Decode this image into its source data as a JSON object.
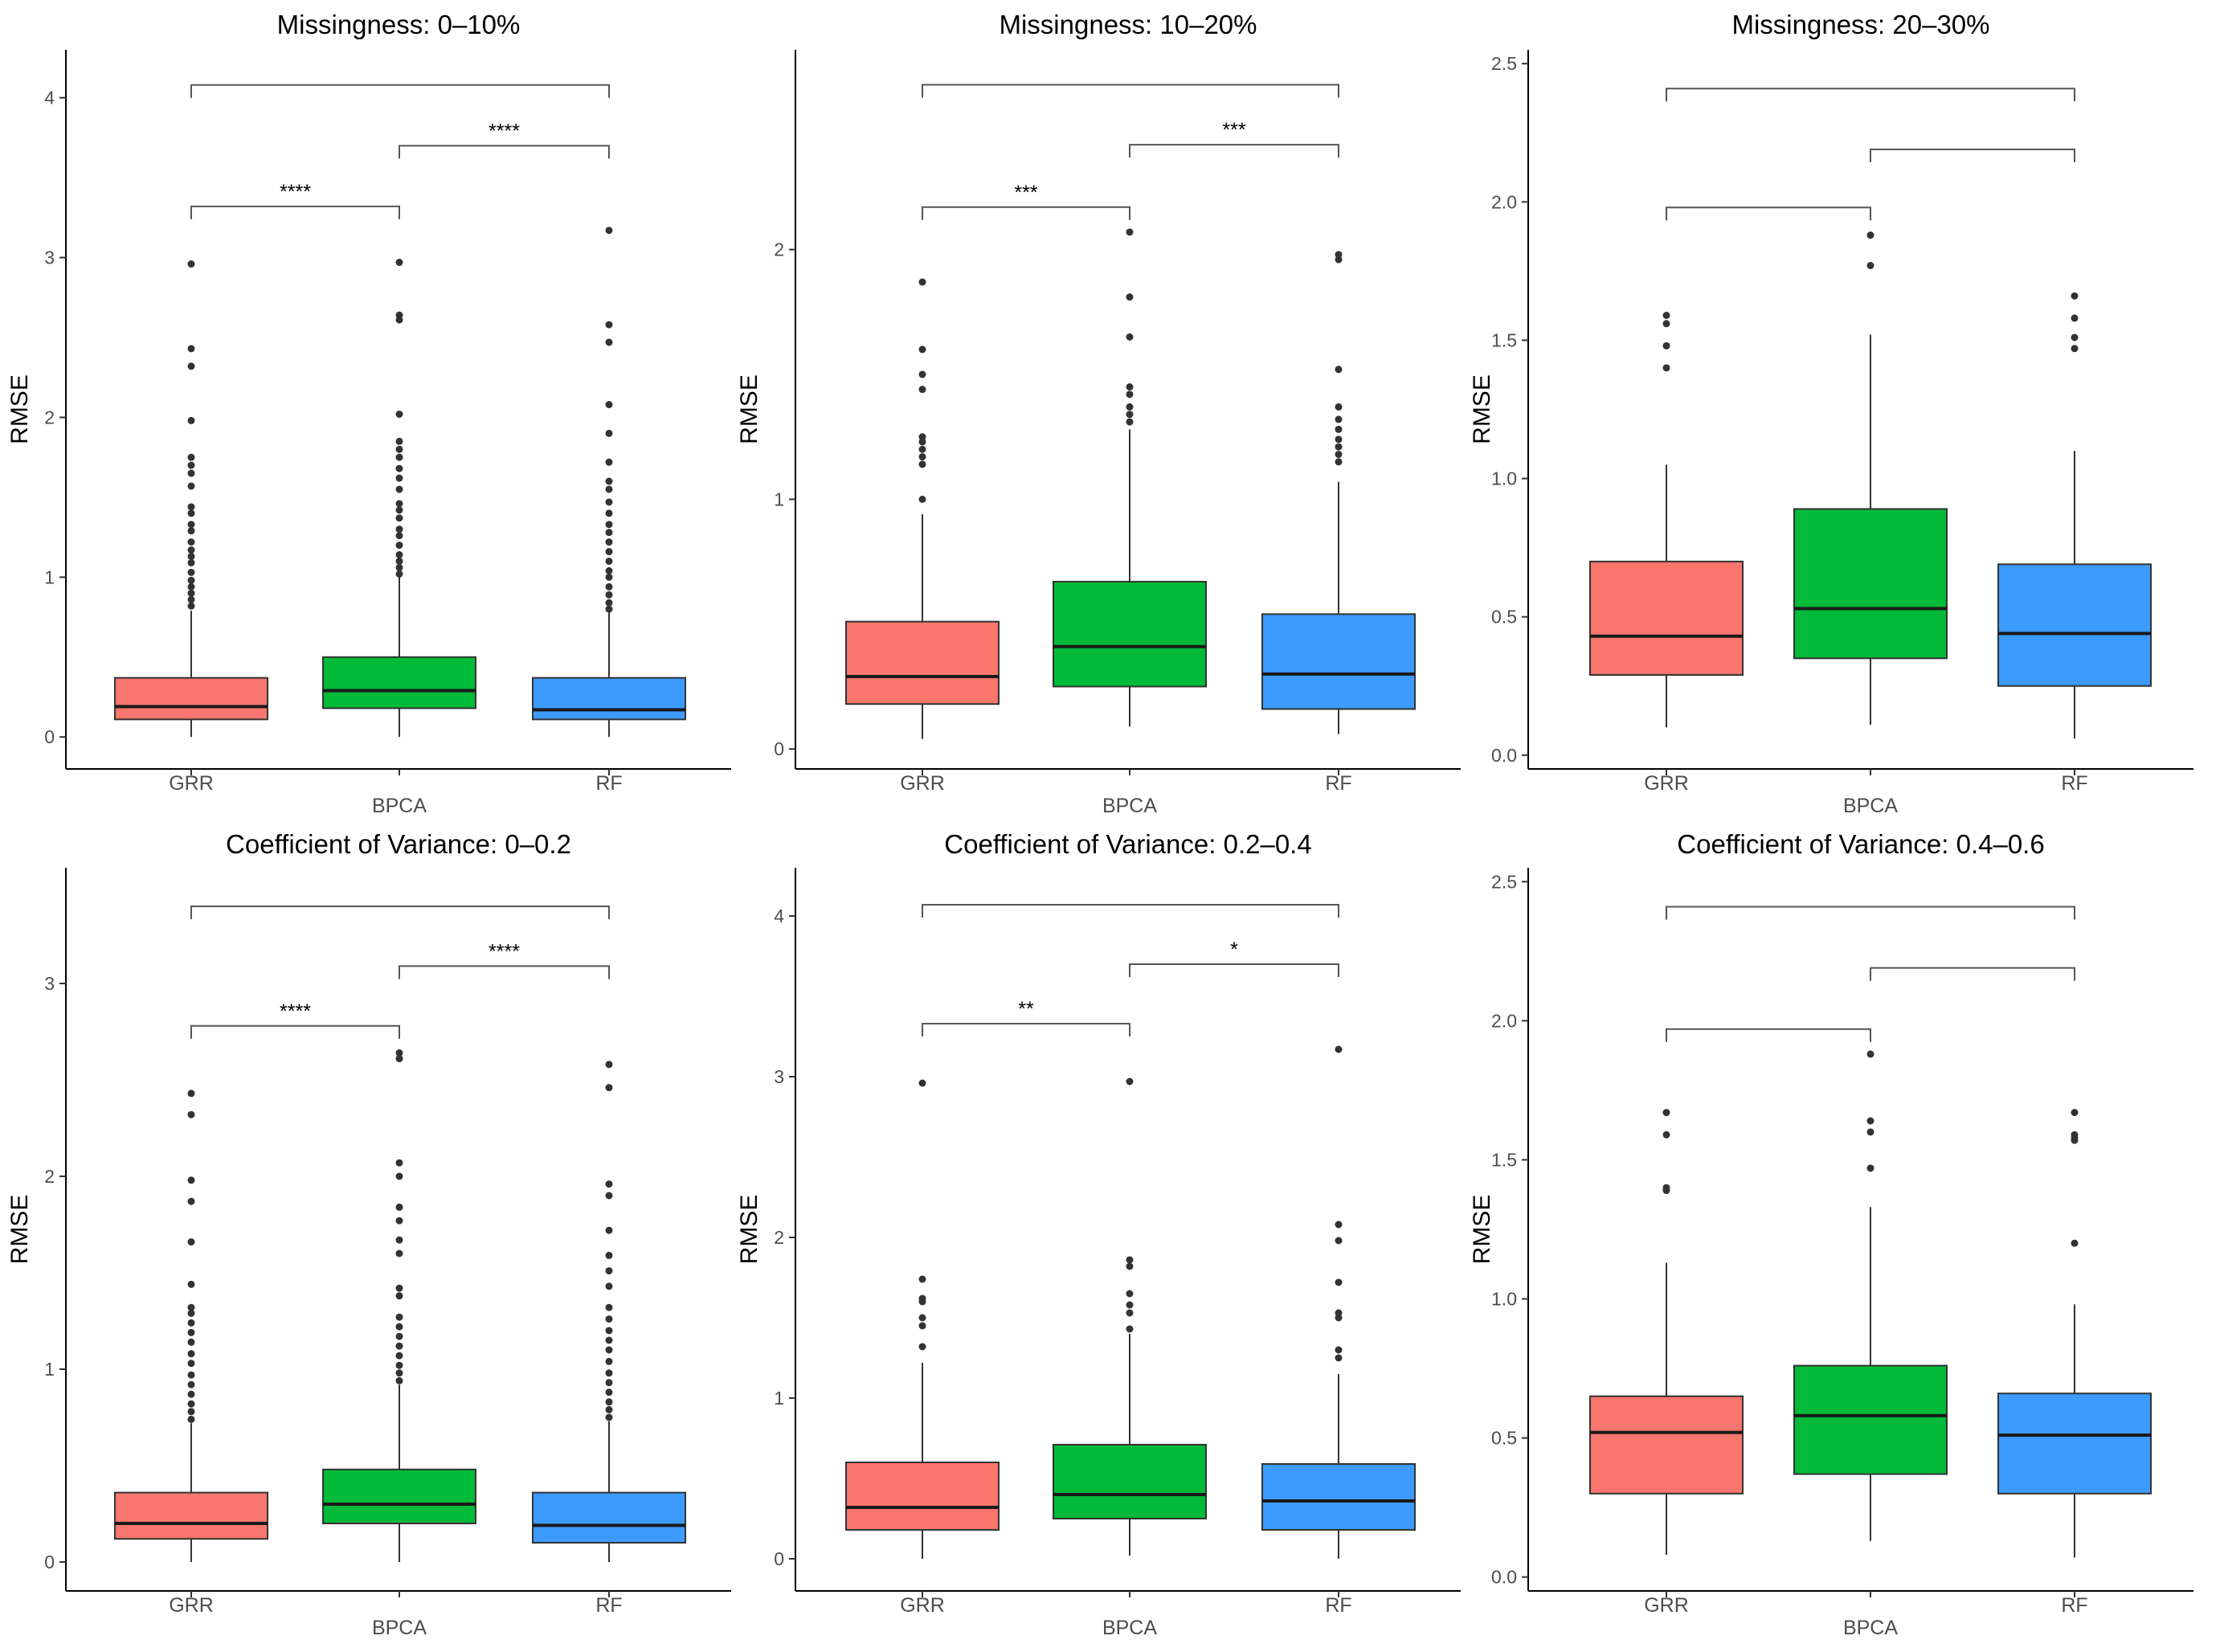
{
  "colors": {
    "GRR": "#F8766D",
    "BPCA": "#00BA38",
    "RF": "#3D9BFF"
  },
  "chart_data": [
    {
      "type": "box",
      "title": "Missingness: 0–10%",
      "ylabel": "RMSE",
      "ylim": [
        -0.2,
        4.3
      ],
      "yticks": [
        0,
        1,
        2,
        3,
        4
      ],
      "ytick_labels": [
        "0",
        "1",
        "2",
        "3",
        "4"
      ],
      "categories": [
        "GRR",
        "BPCA",
        "RF"
      ],
      "boxes": [
        {
          "name": "GRR",
          "low": 0.0,
          "q1": 0.11,
          "median": 0.19,
          "q3": 0.37,
          "high": 0.79,
          "outliers": [
            0.82,
            0.86,
            0.9,
            0.94,
            0.98,
            1.03,
            1.09,
            1.13,
            1.17,
            1.22,
            1.29,
            1.33,
            1.4,
            1.44,
            1.57,
            1.65,
            1.7,
            1.75,
            1.98,
            2.32,
            2.43,
            2.96
          ]
        },
        {
          "name": "BPCA",
          "low": 0.0,
          "q1": 0.18,
          "median": 0.29,
          "q3": 0.5,
          "high": 1.0,
          "outliers": [
            1.02,
            1.06,
            1.1,
            1.14,
            1.2,
            1.26,
            1.3,
            1.37,
            1.42,
            1.46,
            1.55,
            1.62,
            1.68,
            1.75,
            1.8,
            1.85,
            2.02,
            2.61,
            2.64,
            2.97
          ]
        },
        {
          "name": "RF",
          "low": 0.0,
          "q1": 0.11,
          "median": 0.17,
          "q3": 0.37,
          "high": 0.78,
          "outliers": [
            0.8,
            0.84,
            0.89,
            0.94,
            1.0,
            1.04,
            1.1,
            1.16,
            1.22,
            1.28,
            1.33,
            1.4,
            1.47,
            1.55,
            1.6,
            1.72,
            1.9,
            2.08,
            2.47,
            2.58,
            3.17
          ]
        }
      ],
      "comparisons": [
        {
          "from": "GRR",
          "to": "BPCA",
          "y": 3.32,
          "label": "****"
        },
        {
          "from": "BPCA",
          "to": "RF",
          "y": 3.7,
          "label": "****"
        },
        {
          "from": "GRR",
          "to": "RF",
          "y": 4.08,
          "label": ""
        }
      ]
    },
    {
      "type": "box",
      "title": "Missingness: 10–20%",
      "ylabel": "RMSE",
      "ylim": [
        -0.08,
        2.8
      ],
      "yticks": [
        0,
        1,
        2
      ],
      "ytick_labels": [
        "0",
        "1",
        "2"
      ],
      "categories": [
        "GRR",
        "BPCA",
        "RF"
      ],
      "boxes": [
        {
          "name": "GRR",
          "low": 0.04,
          "q1": 0.18,
          "median": 0.29,
          "q3": 0.51,
          "high": 0.94,
          "outliers": [
            1.0,
            1.14,
            1.17,
            1.2,
            1.23,
            1.25,
            1.44,
            1.5,
            1.6,
            1.87
          ]
        },
        {
          "name": "BPCA",
          "low": 0.09,
          "q1": 0.25,
          "median": 0.41,
          "q3": 0.67,
          "high": 1.28,
          "outliers": [
            1.31,
            1.34,
            1.37,
            1.42,
            1.45,
            1.65,
            1.81,
            2.07
          ]
        },
        {
          "name": "RF",
          "low": 0.06,
          "q1": 0.16,
          "median": 0.3,
          "q3": 0.54,
          "high": 1.07,
          "outliers": [
            1.15,
            1.18,
            1.21,
            1.24,
            1.28,
            1.32,
            1.37,
            1.52,
            1.96,
            1.98
          ]
        }
      ],
      "comparisons": [
        {
          "from": "GRR",
          "to": "BPCA",
          "y": 2.17,
          "label": "***"
        },
        {
          "from": "BPCA",
          "to": "RF",
          "y": 2.42,
          "label": "***"
        },
        {
          "from": "GRR",
          "to": "RF",
          "y": 2.66,
          "label": ""
        }
      ]
    },
    {
      "type": "box",
      "title": "Missingness: 20–30%",
      "ylabel": "RMSE",
      "ylim": [
        -0.05,
        2.55
      ],
      "yticks": [
        0,
        0.5,
        1,
        1.5,
        2,
        2.5
      ],
      "ytick_labels": [
        "0.0",
        "0.5",
        "1.0",
        "1.5",
        "2.0",
        "2.5"
      ],
      "categories": [
        "GRR",
        "BPCA",
        "RF"
      ],
      "boxes": [
        {
          "name": "GRR",
          "low": 0.1,
          "q1": 0.29,
          "median": 0.43,
          "q3": 0.7,
          "high": 1.05,
          "outliers": [
            1.4,
            1.48,
            1.56,
            1.59
          ]
        },
        {
          "name": "BPCA",
          "low": 0.11,
          "q1": 0.35,
          "median": 0.53,
          "q3": 0.89,
          "high": 1.52,
          "outliers": [
            1.77,
            1.88
          ]
        },
        {
          "name": "RF",
          "low": 0.06,
          "q1": 0.25,
          "median": 0.44,
          "q3": 0.69,
          "high": 1.1,
          "outliers": [
            1.47,
            1.51,
            1.58,
            1.66
          ]
        }
      ],
      "comparisons": [
        {
          "from": "GRR",
          "to": "BPCA",
          "y": 1.98,
          "label": ""
        },
        {
          "from": "BPCA",
          "to": "RF",
          "y": 2.19,
          "label": ""
        },
        {
          "from": "GRR",
          "to": "RF",
          "y": 2.41,
          "label": ""
        }
      ]
    },
    {
      "type": "box",
      "title": "Coefficient of Variance: 0–0.2",
      "ylabel": "RMSE",
      "ylim": [
        -0.15,
        3.6
      ],
      "yticks": [
        0,
        1,
        2,
        3
      ],
      "ytick_labels": [
        "0",
        "1",
        "2",
        "3"
      ],
      "categories": [
        "GRR",
        "BPCA",
        "RF"
      ],
      "boxes": [
        {
          "name": "GRR",
          "low": 0.0,
          "q1": 0.12,
          "median": 0.2,
          "q3": 0.36,
          "high": 0.72,
          "outliers": [
            0.74,
            0.78,
            0.82,
            0.87,
            0.92,
            0.97,
            1.03,
            1.08,
            1.14,
            1.19,
            1.24,
            1.29,
            1.32,
            1.44,
            1.66,
            1.87,
            1.98,
            2.32,
            2.43
          ]
        },
        {
          "name": "BPCA",
          "low": 0.0,
          "q1": 0.2,
          "median": 0.3,
          "q3": 0.48,
          "high": 0.92,
          "outliers": [
            0.94,
            0.98,
            1.02,
            1.07,
            1.12,
            1.17,
            1.22,
            1.27,
            1.38,
            1.42,
            1.6,
            1.67,
            1.77,
            1.84,
            2.0,
            2.07,
            2.61,
            2.64
          ]
        },
        {
          "name": "RF",
          "low": 0.0,
          "q1": 0.1,
          "median": 0.19,
          "q3": 0.36,
          "high": 0.73,
          "outliers": [
            0.75,
            0.79,
            0.83,
            0.88,
            0.93,
            0.98,
            1.04,
            1.1,
            1.15,
            1.2,
            1.26,
            1.32,
            1.43,
            1.51,
            1.59,
            1.72,
            1.9,
            1.96,
            2.46,
            2.58
          ]
        }
      ],
      "comparisons": [
        {
          "from": "GRR",
          "to": "BPCA",
          "y": 2.78,
          "label": "****"
        },
        {
          "from": "BPCA",
          "to": "RF",
          "y": 3.09,
          "label": "****"
        },
        {
          "from": "GRR",
          "to": "RF",
          "y": 3.4,
          "label": ""
        }
      ]
    },
    {
      "type": "box",
      "title": "Coefficient of Variance: 0.2–0.4",
      "ylabel": "RMSE",
      "ylim": [
        -0.2,
        4.3
      ],
      "yticks": [
        0,
        1,
        2,
        3,
        4
      ],
      "ytick_labels": [
        "0",
        "1",
        "2",
        "3",
        "4"
      ],
      "categories": [
        "GRR",
        "BPCA",
        "RF"
      ],
      "boxes": [
        {
          "name": "GRR",
          "low": 0.0,
          "q1": 0.18,
          "median": 0.32,
          "q3": 0.6,
          "high": 1.22,
          "outliers": [
            1.32,
            1.45,
            1.5,
            1.6,
            1.62,
            1.74,
            2.96
          ]
        },
        {
          "name": "BPCA",
          "low": 0.02,
          "q1": 0.25,
          "median": 0.4,
          "q3": 0.71,
          "high": 1.4,
          "outliers": [
            1.43,
            1.53,
            1.58,
            1.65,
            1.82,
            1.86,
            2.97
          ]
        },
        {
          "name": "RF",
          "low": 0.0,
          "q1": 0.18,
          "median": 0.36,
          "q3": 0.59,
          "high": 1.15,
          "outliers": [
            1.25,
            1.3,
            1.5,
            1.53,
            1.72,
            1.98,
            2.08,
            3.17
          ]
        }
      ],
      "comparisons": [
        {
          "from": "GRR",
          "to": "BPCA",
          "y": 3.33,
          "label": "**"
        },
        {
          "from": "BPCA",
          "to": "RF",
          "y": 3.7,
          "label": "*"
        },
        {
          "from": "GRR",
          "to": "RF",
          "y": 4.07,
          "label": ""
        }
      ]
    },
    {
      "type": "box",
      "title": "Coefficient of Variance: 0.4–0.6",
      "ylabel": "RMSE",
      "ylim": [
        -0.05,
        2.55
      ],
      "yticks": [
        0,
        0.5,
        1,
        1.5,
        2,
        2.5
      ],
      "ytick_labels": [
        "0.0",
        "0.5",
        "1.0",
        "1.5",
        "2.0",
        "2.5"
      ],
      "categories": [
        "GRR",
        "BPCA",
        "RF"
      ],
      "boxes": [
        {
          "name": "GRR",
          "low": 0.08,
          "q1": 0.3,
          "median": 0.52,
          "q3": 0.65,
          "high": 1.13,
          "outliers": [
            1.39,
            1.4,
            1.59,
            1.67
          ]
        },
        {
          "name": "BPCA",
          "low": 0.13,
          "q1": 0.37,
          "median": 0.58,
          "q3": 0.76,
          "high": 1.33,
          "outliers": [
            1.47,
            1.6,
            1.64,
            1.88
          ]
        },
        {
          "name": "RF",
          "low": 0.07,
          "q1": 0.3,
          "median": 0.51,
          "q3": 0.66,
          "high": 0.98,
          "outliers": [
            1.2,
            1.57,
            1.58,
            1.59,
            1.67
          ]
        }
      ],
      "comparisons": [
        {
          "from": "GRR",
          "to": "BPCA",
          "y": 1.97,
          "label": ""
        },
        {
          "from": "BPCA",
          "to": "RF",
          "y": 2.19,
          "label": ""
        },
        {
          "from": "GRR",
          "to": "RF",
          "y": 2.41,
          "label": ""
        }
      ]
    }
  ]
}
